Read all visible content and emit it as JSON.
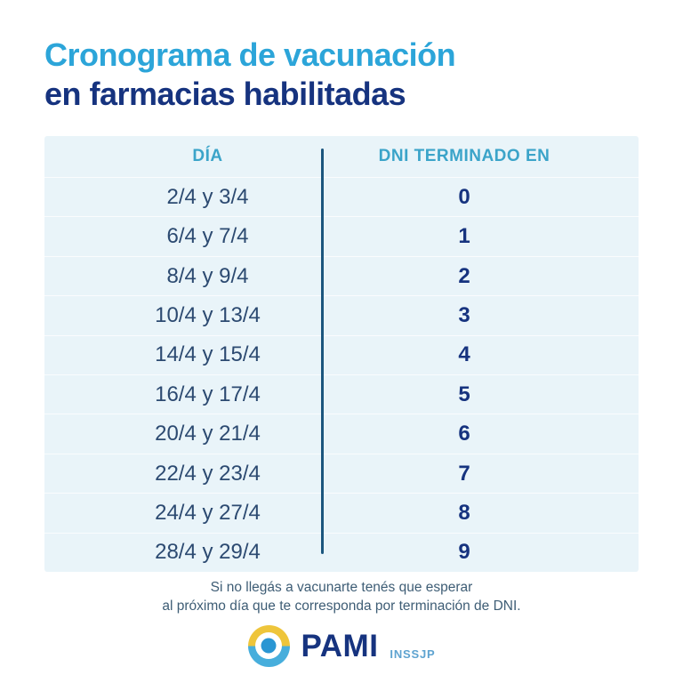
{
  "title": {
    "line1": "Cronograma de vacunación",
    "line2": "en farmacias habilitadas"
  },
  "table": {
    "headers": {
      "day": "DÍA",
      "dni": "DNI TERMINADO EN"
    },
    "rows": [
      {
        "day": "2/4 y 3/4",
        "dni": "0"
      },
      {
        "day": "6/4 y 7/4",
        "dni": "1"
      },
      {
        "day": "8/4 y 9/4",
        "dni": "2"
      },
      {
        "day": "10/4 y 13/4",
        "dni": "3"
      },
      {
        "day": "14/4 y 15/4",
        "dni": "4"
      },
      {
        "day": "16/4 y 17/4",
        "dni": "5"
      },
      {
        "day": "20/4 y 21/4",
        "dni": "6"
      },
      {
        "day": "22/4 y 23/4",
        "dni": "7"
      },
      {
        "day": "24/4 y 27/4",
        "dni": "8"
      },
      {
        "day": "28/4 y 29/4",
        "dni": "9"
      }
    ]
  },
  "note": {
    "line1": "Si no llegás a vacunarte tenés que esperar",
    "line2": "al próximo día que te corresponda por terminación de DNI."
  },
  "logo": {
    "name": "PAMI",
    "sub": "INSSJP"
  },
  "colors": {
    "title_light_blue": "#2CA5D9",
    "brand_navy": "#16337F",
    "header_teal": "#3BA4C9",
    "date_slate_blue": "#2C4A71",
    "panel_background": "#E9F4F9",
    "column_divider": "#1B567E",
    "note_text": "#3E5D75",
    "logo_yellow": "#EEC53B",
    "logo_light_blue": "#47AEDC",
    "logo_dot_blue": "#2A96D3",
    "logo_sub_blue": "#5EA3D0"
  }
}
